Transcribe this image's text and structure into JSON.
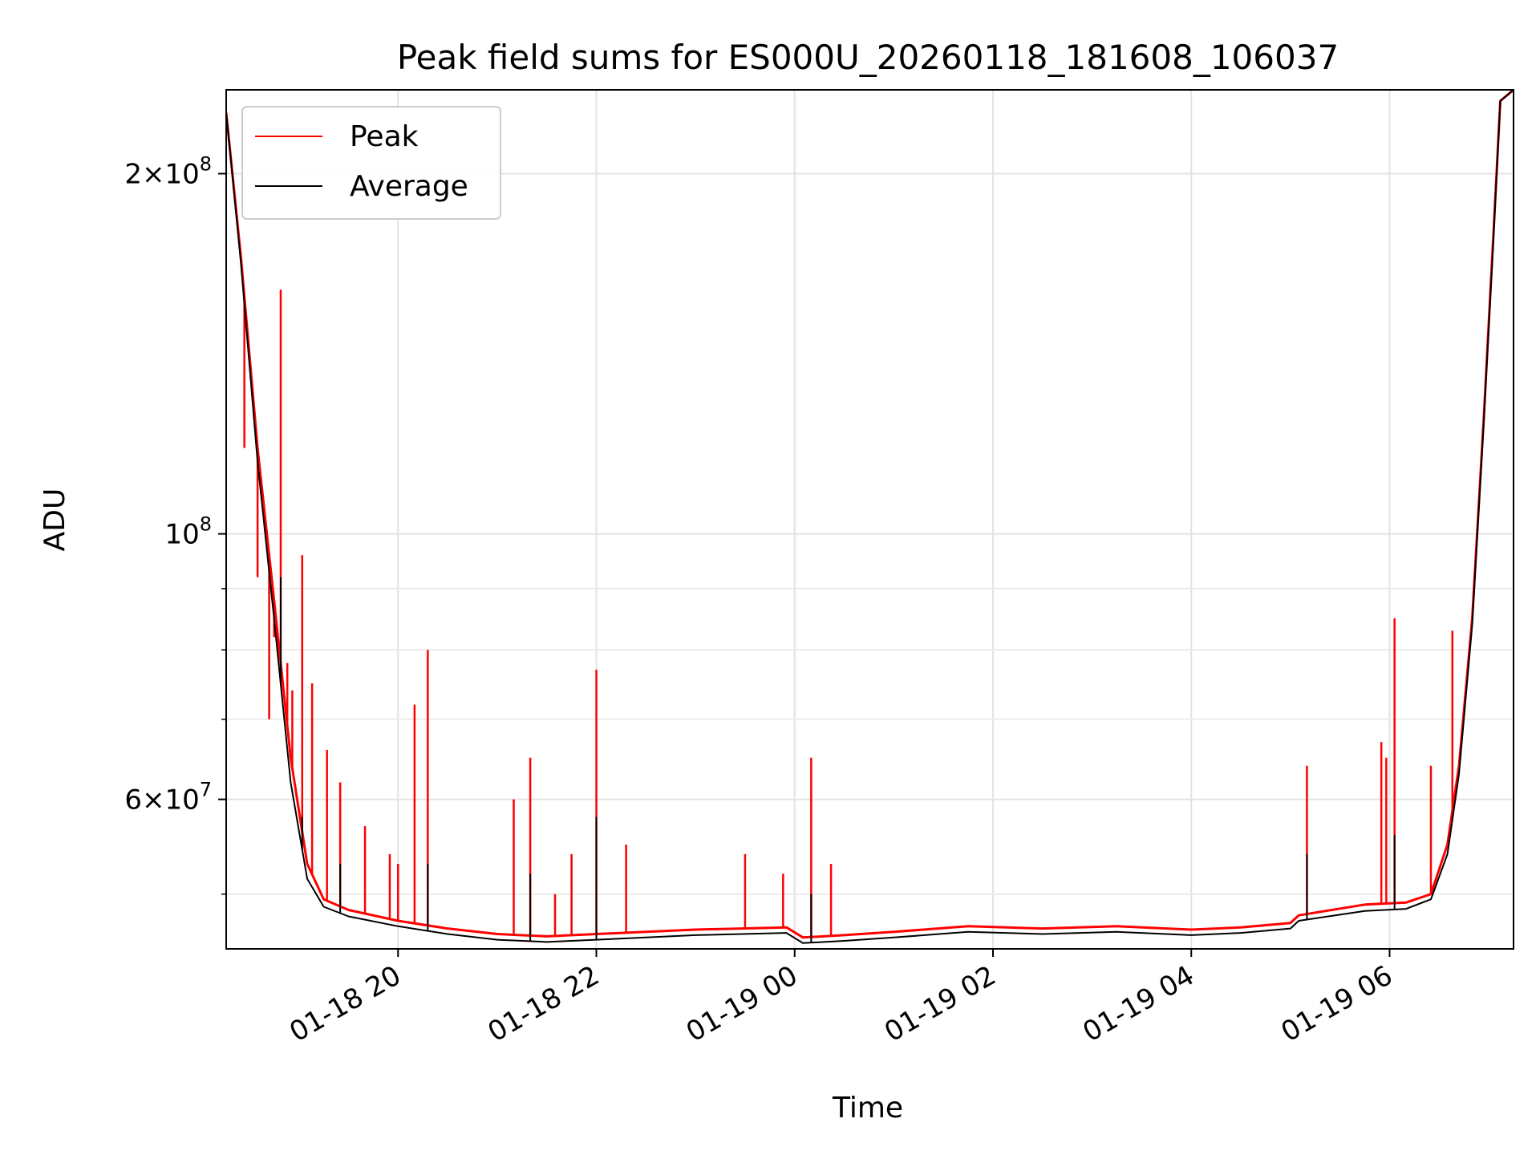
{
  "chart_data": {
    "type": "line",
    "title": "Peak field sums for ES000U_20260118_181608_106037",
    "xlabel": "Time",
    "ylabel": "ADU",
    "y_scale": "log",
    "grid": true,
    "legend_position": "top-left",
    "xlim": [
      "2026-01-18 18:16",
      "2026-01-19 07:15"
    ],
    "ylim": [
      45000000,
      235000000
    ],
    "x_ticks": [
      {
        "value": "2026-01-18 20:00",
        "label": "01-18 20"
      },
      {
        "value": "2026-01-18 22:00",
        "label": "01-18 22"
      },
      {
        "value": "2026-01-19 00:00",
        "label": "01-19 00"
      },
      {
        "value": "2026-01-19 02:00",
        "label": "01-19 02"
      },
      {
        "value": "2026-01-19 04:00",
        "label": "01-19 04"
      },
      {
        "value": "2026-01-19 06:00",
        "label": "01-19 06"
      }
    ],
    "y_major_ticks": [
      {
        "value": 60000000,
        "mantissa": "6",
        "base": "10",
        "exp": "7"
      },
      {
        "value": 100000000,
        "mantissa": "",
        "base": "10",
        "exp": "8"
      },
      {
        "value": 200000000,
        "mantissa": "2",
        "base": "10",
        "exp": "8"
      }
    ],
    "y_minor_ticks": [
      50000000,
      70000000,
      80000000,
      90000000
    ],
    "series": [
      {
        "name": "Peak",
        "color": "#ff0000",
        "points": [
          [
            "2026-01-18 18:16",
            225000000
          ],
          [
            "2026-01-18 18:25",
            170000000
          ],
          [
            "2026-01-18 18:35",
            118000000
          ],
          [
            "2026-01-18 18:45",
            88000000
          ],
          [
            "2026-01-18 18:55",
            65000000
          ],
          [
            "2026-01-18 19:05",
            53000000
          ],
          [
            "2026-01-18 19:15",
            49500000
          ],
          [
            "2026-01-18 19:30",
            48500000
          ],
          [
            "2026-01-18 20:00",
            47500000
          ],
          [
            "2026-01-18 20:30",
            46800000
          ],
          [
            "2026-01-18 21:00",
            46300000
          ],
          [
            "2026-01-18 21:30",
            46100000
          ],
          [
            "2026-01-18 22:00",
            46300000
          ],
          [
            "2026-01-18 22:30",
            46500000
          ],
          [
            "2026-01-18 23:00",
            46700000
          ],
          [
            "2026-01-18 23:55",
            46900000
          ],
          [
            "2026-01-19 00:05",
            46000000
          ],
          [
            "2026-01-19 00:30",
            46200000
          ],
          [
            "2026-01-19 01:00",
            46500000
          ],
          [
            "2026-01-19 01:45",
            47000000
          ],
          [
            "2026-01-19 02:30",
            46800000
          ],
          [
            "2026-01-19 03:15",
            47000000
          ],
          [
            "2026-01-19 04:00",
            46700000
          ],
          [
            "2026-01-19 04:30",
            46900000
          ],
          [
            "2026-01-19 05:00",
            47300000
          ],
          [
            "2026-01-19 05:05",
            48000000
          ],
          [
            "2026-01-19 05:45",
            49000000
          ],
          [
            "2026-01-19 06:10",
            49200000
          ],
          [
            "2026-01-19 06:25",
            50000000
          ],
          [
            "2026-01-19 06:35",
            55000000
          ],
          [
            "2026-01-19 06:42",
            64000000
          ],
          [
            "2026-01-19 06:50",
            85000000
          ],
          [
            "2026-01-19 06:57",
            125000000
          ],
          [
            "2026-01-19 07:03",
            180000000
          ],
          [
            "2026-01-19 07:07",
            230000000
          ],
          [
            "2026-01-19 07:15",
            235000000
          ]
        ],
        "spikes": [
          [
            "2026-01-18 18:27",
            118000000
          ],
          [
            "2026-01-18 18:35",
            92000000
          ],
          [
            "2026-01-18 18:42",
            70000000
          ],
          [
            "2026-01-18 18:45",
            82000000
          ],
          [
            "2026-01-18 18:49",
            160000000
          ],
          [
            "2026-01-18 18:53",
            78000000
          ],
          [
            "2026-01-18 18:56",
            74000000
          ],
          [
            "2026-01-18 19:02",
            96000000
          ],
          [
            "2026-01-18 19:08",
            75000000
          ],
          [
            "2026-01-18 19:17",
            66000000
          ],
          [
            "2026-01-18 19:25",
            62000000
          ],
          [
            "2026-01-18 19:40",
            57000000
          ],
          [
            "2026-01-18 19:55",
            54000000
          ],
          [
            "2026-01-18 20:00",
            53000000
          ],
          [
            "2026-01-18 20:10",
            72000000
          ],
          [
            "2026-01-18 20:18",
            80000000
          ],
          [
            "2026-01-18 21:10",
            60000000
          ],
          [
            "2026-01-18 21:20",
            65000000
          ],
          [
            "2026-01-18 21:35",
            50000000
          ],
          [
            "2026-01-18 21:45",
            54000000
          ],
          [
            "2026-01-18 22:00",
            77000000
          ],
          [
            "2026-01-18 22:18",
            55000000
          ],
          [
            "2026-01-18 23:30",
            54000000
          ],
          [
            "2026-01-18 23:53",
            52000000
          ],
          [
            "2026-01-19 00:10",
            65000000
          ],
          [
            "2026-01-19 00:22",
            53000000
          ],
          [
            "2026-01-19 05:10",
            64000000
          ],
          [
            "2026-01-19 05:55",
            67000000
          ],
          [
            "2026-01-19 05:58",
            65000000
          ],
          [
            "2026-01-19 06:03",
            85000000
          ],
          [
            "2026-01-19 06:25",
            64000000
          ],
          [
            "2026-01-19 06:38",
            83000000
          ]
        ]
      },
      {
        "name": "Average",
        "color": "#000000",
        "points": [
          [
            "2026-01-18 18:16",
            225000000
          ],
          [
            "2026-01-18 18:25",
            168000000
          ],
          [
            "2026-01-18 18:35",
            115000000
          ],
          [
            "2026-01-18 18:45",
            85000000
          ],
          [
            "2026-01-18 18:55",
            62000000
          ],
          [
            "2026-01-18 19:05",
            51500000
          ],
          [
            "2026-01-18 19:15",
            48800000
          ],
          [
            "2026-01-18 19:30",
            47900000
          ],
          [
            "2026-01-18 20:00",
            47000000
          ],
          [
            "2026-01-18 20:30",
            46300000
          ],
          [
            "2026-01-18 21:00",
            45800000
          ],
          [
            "2026-01-18 21:30",
            45600000
          ],
          [
            "2026-01-18 22:00",
            45800000
          ],
          [
            "2026-01-18 22:30",
            46000000
          ],
          [
            "2026-01-18 23:00",
            46200000
          ],
          [
            "2026-01-18 23:55",
            46400000
          ],
          [
            "2026-01-19 00:05",
            45500000
          ],
          [
            "2026-01-19 00:30",
            45700000
          ],
          [
            "2026-01-19 01:00",
            46000000
          ],
          [
            "2026-01-19 01:45",
            46500000
          ],
          [
            "2026-01-19 02:30",
            46300000
          ],
          [
            "2026-01-19 03:15",
            46500000
          ],
          [
            "2026-01-19 04:00",
            46200000
          ],
          [
            "2026-01-19 04:30",
            46400000
          ],
          [
            "2026-01-19 05:00",
            46800000
          ],
          [
            "2026-01-19 05:05",
            47500000
          ],
          [
            "2026-01-19 05:45",
            48400000
          ],
          [
            "2026-01-19 06:10",
            48600000
          ],
          [
            "2026-01-19 06:25",
            49500000
          ],
          [
            "2026-01-19 06:35",
            54000000
          ],
          [
            "2026-01-19 06:42",
            63000000
          ],
          [
            "2026-01-19 06:50",
            84000000
          ],
          [
            "2026-01-19 06:57",
            124000000
          ],
          [
            "2026-01-19 07:03",
            178000000
          ],
          [
            "2026-01-19 07:07",
            230000000
          ],
          [
            "2026-01-19 07:15",
            235000000
          ]
        ],
        "spikes": [
          [
            "2026-01-18 18:49",
            92000000
          ],
          [
            "2026-01-18 19:02",
            58000000
          ],
          [
            "2026-01-18 19:25",
            53000000
          ],
          [
            "2026-01-18 20:18",
            53000000
          ],
          [
            "2026-01-18 21:20",
            52000000
          ],
          [
            "2026-01-18 22:00",
            58000000
          ],
          [
            "2026-01-19 00:10",
            50000000
          ],
          [
            "2026-01-19 05:10",
            54000000
          ],
          [
            "2026-01-19 06:03",
            56000000
          ]
        ]
      }
    ]
  }
}
